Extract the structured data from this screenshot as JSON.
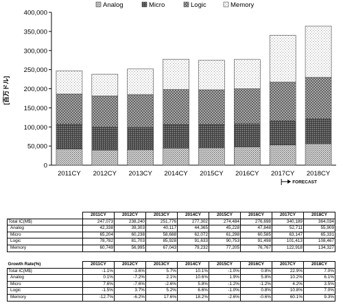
{
  "chart_data": {
    "type": "bar",
    "stacked": true,
    "categories": [
      "2011CY",
      "2012CY",
      "2013CY",
      "2014CY",
      "2015CY",
      "2016CY",
      "2017CY",
      "2018CY"
    ],
    "series": [
      {
        "name": "Analog",
        "values": [
          42338,
          39303,
          40117,
          44365,
          45228,
          47848,
          52711,
          55909
        ],
        "color": "#c9c9c9",
        "pattern": "dense-hatch"
      },
      {
        "name": "Micro",
        "values": [
          65204,
          60238,
          58688,
          62072,
          61298,
          60585,
          63147,
          65331
        ],
        "color": "#6b6b6b",
        "pattern": "dark-dense"
      },
      {
        "name": "Logic",
        "values": [
          78782,
          81703,
          85928,
          91633,
          90753,
          91498,
          101413,
          108467
        ],
        "color": "#a0a0a0",
        "pattern": "grid-hatch"
      },
      {
        "name": "Memory",
        "values": [
          60749,
          56995,
          67043,
          79232,
          77205,
          76767,
          122918,
          134327
        ],
        "color": "#ffffff",
        "pattern": "sparse-dots"
      }
    ],
    "ylabel": "[百万ドル]",
    "ylim": [
      0,
      400000
    ],
    "yticks": [
      0,
      50000,
      100000,
      150000,
      200000,
      250000,
      300000,
      350000,
      400000
    ],
    "ytick_labels": [
      "0",
      "50,000",
      "100,000",
      "150,000",
      "200,000",
      "250,000",
      "300,000",
      "350,000",
      "400,000"
    ],
    "grid": false,
    "legend_position": "top",
    "annotation": {
      "text": "FORECAST",
      "from_category": "2017CY",
      "to_category": "2018CY"
    }
  },
  "table1": {
    "headers": [
      "2011CY",
      "2012CY",
      "2013CY",
      "2014CY",
      "2015CY",
      "2016CY",
      "2017CY",
      "2018CY"
    ],
    "rows": [
      {
        "label": "Total IC(M$)",
        "sub": false,
        "values": [
          "247,073",
          "238,240",
          "251,776",
          "277,302",
          "274,484",
          "276,698",
          "340,189",
          "364,034"
        ]
      },
      {
        "label": "Analog",
        "sub": true,
        "values": [
          "42,338",
          "39,303",
          "40,117",
          "44,365",
          "45,228",
          "47,848",
          "52,711",
          "55,909"
        ]
      },
      {
        "label": "Micro",
        "sub": true,
        "values": [
          "65,204",
          "60,238",
          "58,688",
          "62,072",
          "61,298",
          "60,585",
          "63,147",
          "65,331"
        ]
      },
      {
        "label": "Logic",
        "sub": true,
        "values": [
          "78,782",
          "81,703",
          "85,928",
          "91,633",
          "90,753",
          "91,498",
          "101,413",
          "108,467"
        ]
      },
      {
        "label": "Memory",
        "sub": true,
        "values": [
          "60,749",
          "56,995",
          "67,043",
          "79,232",
          "77,205",
          "76,767",
          "122,918",
          "134,327"
        ]
      }
    ]
  },
  "table2": {
    "corner": "Growth Rate(%)",
    "headers": [
      "2011CY",
      "2012CY",
      "2013CY",
      "2014CY",
      "2015CY",
      "2016CY",
      "2017CY",
      "2018CY"
    ],
    "rows": [
      {
        "label": "Total IC(M$)",
        "sub": false,
        "values": [
          "-1.1%",
          "-3.6%",
          "5.7%",
          "10.1%",
          "-1.0%",
          "0.8%",
          "22.9%",
          "7.0%"
        ]
      },
      {
        "label": "Analog",
        "sub": true,
        "values": [
          "0.1%",
          "-7.2%",
          "2.1%",
          "10.6%",
          "1.9%",
          "5.8%",
          "10.2%",
          "6.1%"
        ]
      },
      {
        "label": "Micro",
        "sub": true,
        "values": [
          "7.6%",
          "-7.6%",
          "-2.6%",
          "5.8%",
          "-1.2%",
          "-1.2%",
          "4.2%",
          "3.5%"
        ]
      },
      {
        "label": "Logic",
        "sub": true,
        "values": [
          "-1.5%",
          "3.7%",
          "5.2%",
          "6.6%",
          "-1.0%",
          "0.8%",
          "10.8%",
          "7.0%"
        ]
      },
      {
        "label": "Memory",
        "sub": true,
        "values": [
          "-12.7%",
          "-6.2%",
          "17.6%",
          "18.2%",
          "-2.6%",
          "-0.6%",
          "60.1%",
          "9.3%"
        ]
      }
    ]
  }
}
